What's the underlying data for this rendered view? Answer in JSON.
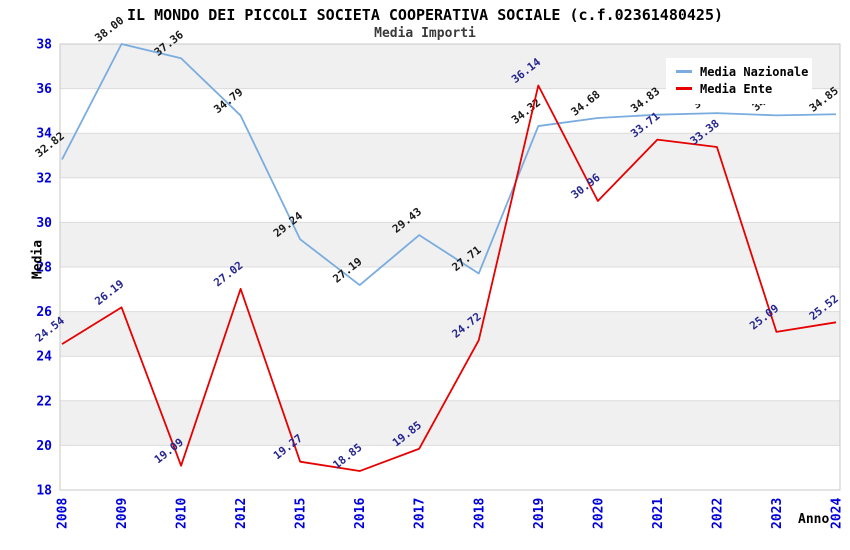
{
  "title": "IL MONDO DEI PICCOLI SOCIETA COOPERATIVA SOCIALE (c.f.02361480425)",
  "subtitle": "Media Importi",
  "legend": {
    "position": "top-right",
    "items": [
      {
        "label": "Media Nazionale",
        "color": "#7AACE0"
      },
      {
        "label": "Media Ente",
        "color": "#E60000"
      }
    ]
  },
  "colors": {
    "tick_label": "#0000DD",
    "band_gray": "#F0F0F0",
    "grid_line": "#DCDCDC",
    "plot_border": "#C9C9C9",
    "background": "#FFFFFF"
  },
  "chart_data": {
    "type": "line",
    "title": "IL MONDO DEI PICCOLI SOCIETA COOPERATIVA SOCIALE (c.f.02361480425)",
    "subtitle": "Media Importi",
    "xlabel": "Anno",
    "ylabel": "Media",
    "ylim": [
      18,
      38
    ],
    "y_ticks": [
      18,
      20,
      22,
      24,
      26,
      28,
      30,
      32,
      34,
      36,
      38
    ],
    "grid": "alternating horizontal gray/white bands every 2 units, light gridlines",
    "legend_position": "top-right",
    "categories": [
      "2008",
      "2009",
      "2010",
      "2012",
      "2015",
      "2016",
      "2017",
      "2018",
      "2019",
      "2020",
      "2021",
      "2022",
      "2023",
      "2024"
    ],
    "series": [
      {
        "name": "Media Nazionale",
        "color": "#7AACE0",
        "label_color": "#1A1A1A",
        "values": [
          32.82,
          38.0,
          37.36,
          34.79,
          29.24,
          27.19,
          29.43,
          27.71,
          34.32,
          34.68,
          34.83,
          34.9,
          34.8,
          34.85
        ],
        "labels": [
          "32.82",
          "38.00",
          "37.36",
          "34.79",
          "29.24",
          "27.19",
          "29.43",
          "27.71",
          "34.32",
          "34.68",
          "34.83",
          "34.9",
          "34.8",
          "34.85"
        ]
      },
      {
        "name": "Media Ente",
        "color": "#E60000",
        "label_color": "#26268F",
        "values": [
          24.54,
          26.19,
          19.09,
          27.02,
          19.27,
          18.85,
          19.85,
          24.72,
          36.14,
          30.96,
          33.71,
          33.38,
          25.09,
          25.52
        ],
        "labels": [
          "24.54",
          "26.19",
          "19.09",
          "27.02",
          "19.27",
          "18.85",
          "19.85",
          "24.72",
          "36.14",
          "30.96",
          "33.71",
          "33.38",
          "25.09",
          "25.52"
        ]
      }
    ]
  }
}
